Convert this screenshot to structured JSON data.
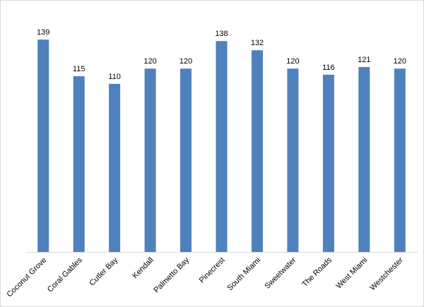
{
  "chart_data": {
    "type": "bar",
    "title": "",
    "xlabel": "",
    "ylabel": "",
    "categories": [
      "Coconut Grove",
      "Coral Gables",
      "Cutler Bay",
      "Kendall",
      "Palmetto Bay",
      "Pinecrest",
      "South Miami",
      "Sweetwater",
      "The Roads",
      "West Miami",
      "Westchester"
    ],
    "values": [
      139,
      115,
      110,
      120,
      120,
      138,
      132,
      120,
      116,
      121,
      120
    ],
    "ylim": [
      0,
      150
    ],
    "grid": false,
    "legend": "none",
    "data_labels": true,
    "bar_color": "#4f81bd"
  }
}
